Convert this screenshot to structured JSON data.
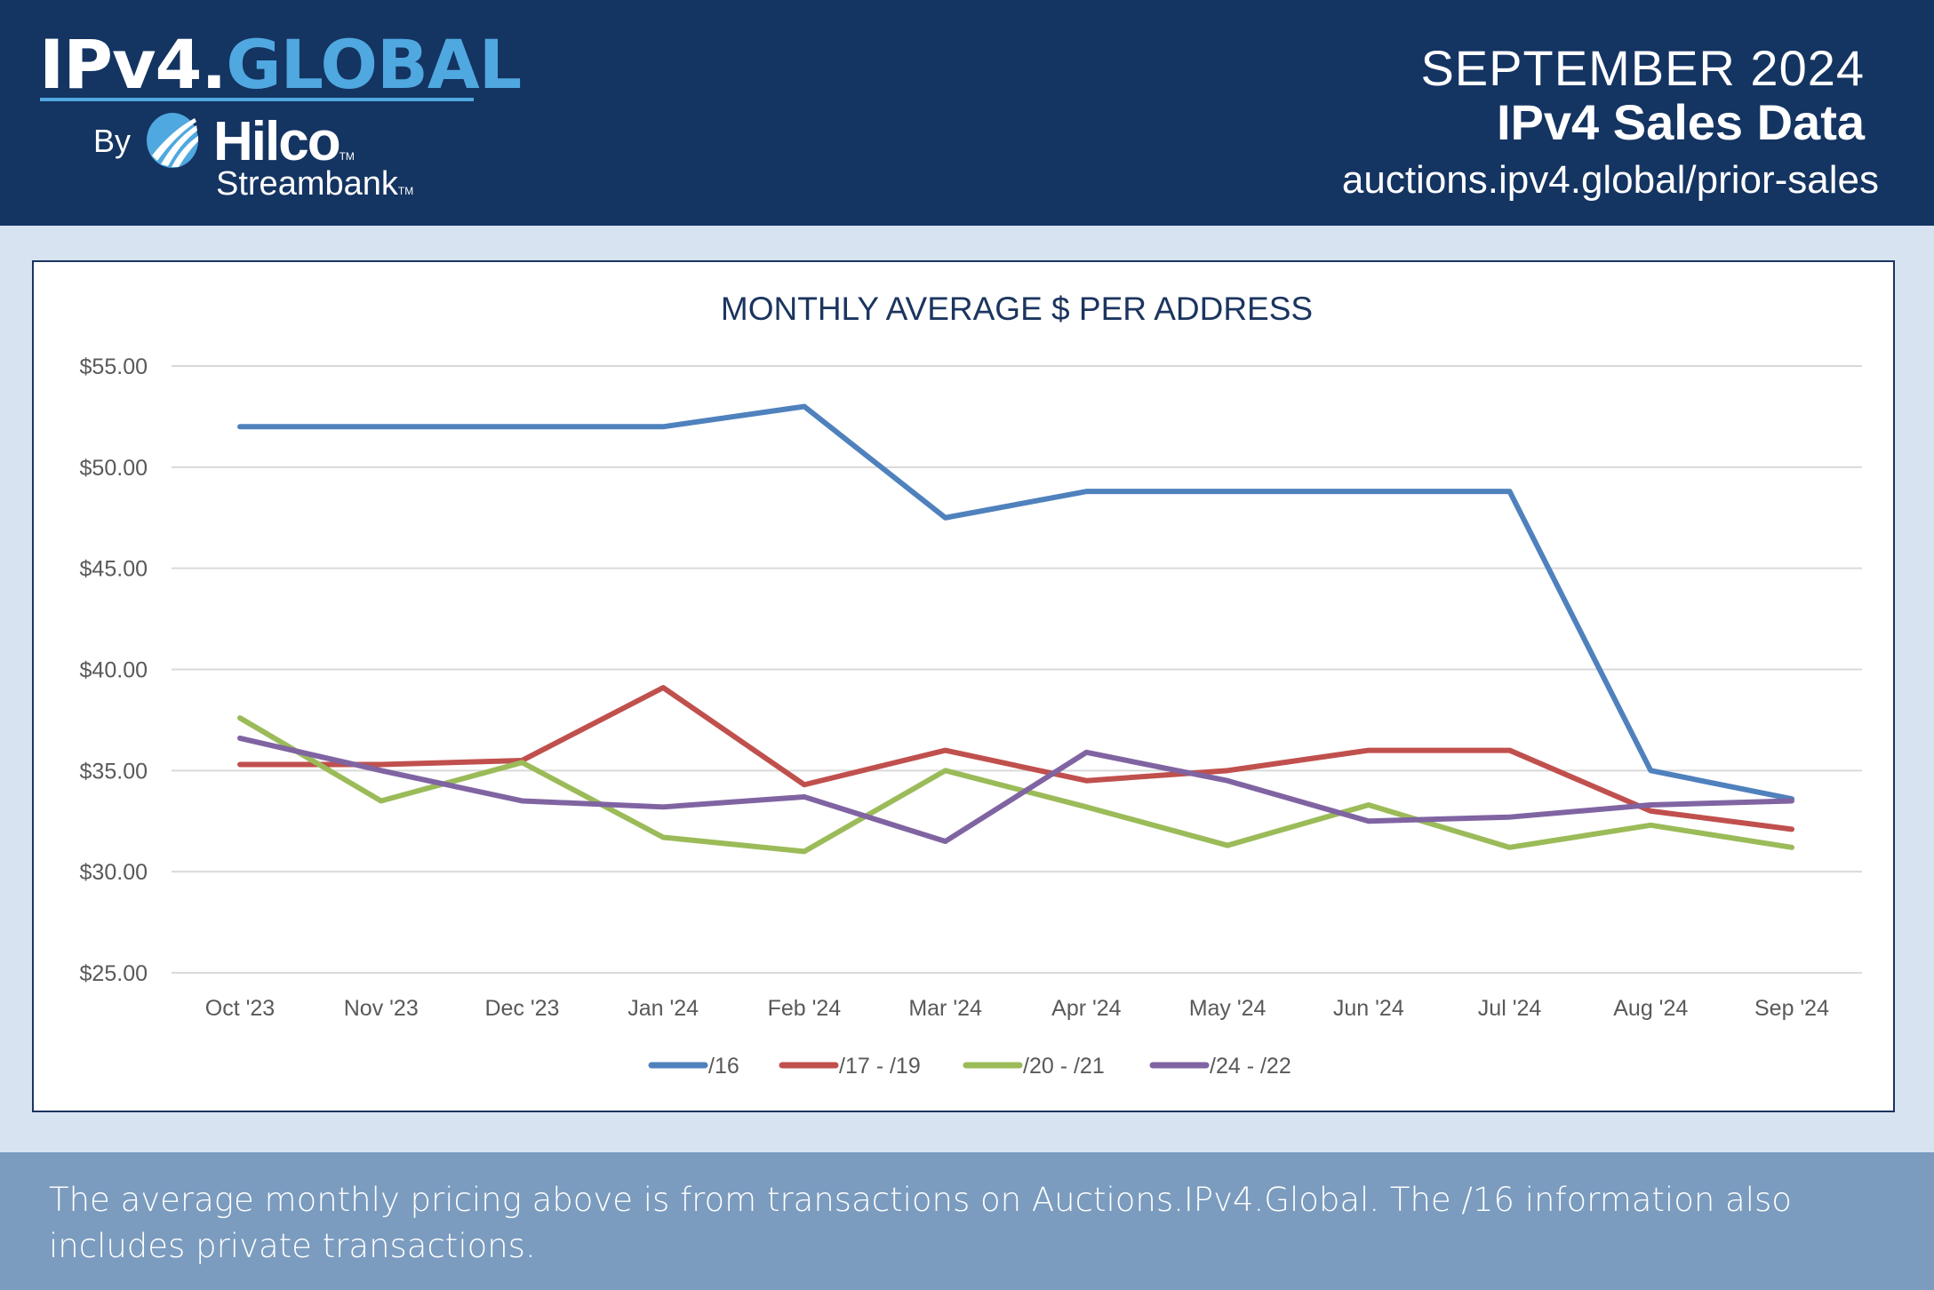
{
  "header": {
    "logo_text_1": "IPv4.",
    "logo_text_2": "GLOBAL",
    "by": "By",
    "hilco": "Hilco",
    "streambank": "Streambank",
    "tm": "TM",
    "month": "SEPTEMBER 2024",
    "subtitle": "IPv4 Sales Data",
    "url": "auctions.ipv4.global/prior-sales"
  },
  "chart_data": {
    "type": "line",
    "title": "MONTHLY AVERAGE $ PER ADDRESS",
    "categories": [
      "Oct '23",
      "Nov '23",
      "Dec '23",
      "Jan '24",
      "Feb '24",
      "Mar '24",
      "Apr '24",
      "May '24",
      "Jun '24",
      "Jul '24",
      "Aug '24",
      "Sep '24"
    ],
    "ylim": [
      25,
      55
    ],
    "yticks": [
      "$25.00",
      "$30.00",
      "$35.00",
      "$40.00",
      "$45.00",
      "$50.00",
      "$55.00"
    ],
    "grid": true,
    "legend": "bottom",
    "series": [
      {
        "name": "/16",
        "color": "#4f81bd",
        "values": [
          52.0,
          52.0,
          52.0,
          52.0,
          53.0,
          47.5,
          48.8,
          48.8,
          48.8,
          48.8,
          35.0,
          33.6
        ]
      },
      {
        "name": "/17 - /19",
        "color": "#c0504d",
        "values": [
          35.3,
          35.3,
          35.5,
          39.1,
          34.3,
          36.0,
          34.5,
          35.0,
          36.0,
          36.0,
          33.0,
          32.1
        ]
      },
      {
        "name": "/20 - /21",
        "color": "#9bbb59",
        "values": [
          37.6,
          33.5,
          35.4,
          31.7,
          31.0,
          35.0,
          33.2,
          31.3,
          33.3,
          31.2,
          32.3,
          31.2
        ]
      },
      {
        "name": "/24 - /22",
        "color": "#8064a2",
        "values": [
          36.6,
          35.0,
          33.5,
          33.2,
          33.7,
          31.5,
          35.9,
          34.5,
          32.5,
          32.7,
          33.3,
          33.5
        ]
      }
    ]
  },
  "footer": {
    "note": "The average monthly pricing above is from transactions on Auctions.IPv4.Global. The /16 information also includes private transactions."
  }
}
